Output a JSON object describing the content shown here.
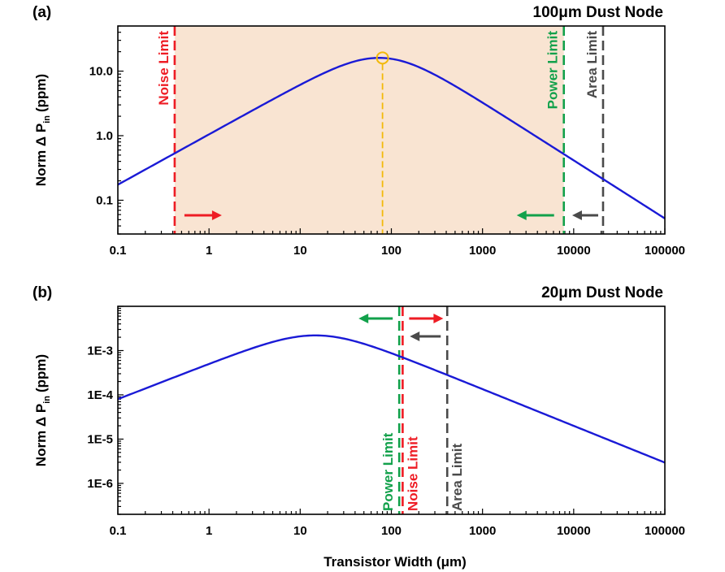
{
  "chart_data": [
    {
      "type": "line",
      "panel_label": "(a)",
      "title": "100μm Dust Node",
      "xlabel": "",
      "ylabel_main": "Norm Δ P",
      "ylabel_sub": "in",
      "ylabel_unit": "(ppm)",
      "xscale": "log",
      "yscale": "log",
      "xlim": [
        0.1,
        100000
      ],
      "ylim": [
        0.03,
        50
      ],
      "xticks": [
        {
          "value": 0.1,
          "label": "0.1"
        },
        {
          "value": 1,
          "label": "1"
        },
        {
          "value": 10,
          "label": "10"
        },
        {
          "value": 100,
          "label": "100"
        },
        {
          "value": 1000,
          "label": "1000"
        },
        {
          "value": 10000,
          "label": "10000"
        },
        {
          "value": 100000,
          "label": "100000"
        }
      ],
      "yticks": [
        {
          "value": 0.1,
          "label": "0.1"
        },
        {
          "value": 1,
          "label": "1.0"
        },
        {
          "value": 10,
          "label": "10.0"
        }
      ],
      "series": [
        {
          "name": "Norm ΔPin",
          "color": "#1a1ad6",
          "peak": {
            "x": 80,
            "y": 16
          },
          "slope_left": 0.78,
          "slope_right": 0.9
        }
      ],
      "optimum_marker": {
        "x": 80,
        "y": 16,
        "color": "#f2b90a"
      },
      "shaded_region": {
        "from": 0.42,
        "to": 7800,
        "color": "#f9e4d2"
      },
      "limits": [
        {
          "label": "Noise Limit",
          "x": 0.42,
          "color": "#ee1c24",
          "arrow": "right",
          "label_side": "left"
        },
        {
          "label": "Power Limit",
          "x": 7800,
          "color": "#12a14b",
          "arrow": "left",
          "label_side": "left"
        },
        {
          "label": "Area Limit",
          "x": 21000,
          "color": "#4a4a4a",
          "arrow": "left",
          "label_side": "left"
        }
      ]
    },
    {
      "type": "line",
      "panel_label": "(b)",
      "title": "20μm Dust Node",
      "xlabel": "Transistor Width (μm)",
      "ylabel_main": "Norm Δ P",
      "ylabel_sub": "in",
      "ylabel_unit": "(ppm)",
      "xscale": "log",
      "yscale": "log",
      "xlim": [
        0.1,
        100000
      ],
      "ylim": [
        2e-07,
        0.01
      ],
      "xticks": [
        {
          "value": 0.1,
          "label": "0.1"
        },
        {
          "value": 1,
          "label": "1"
        },
        {
          "value": 10,
          "label": "10"
        },
        {
          "value": 100,
          "label": "100"
        },
        {
          "value": 1000,
          "label": "1000"
        },
        {
          "value": 10000,
          "label": "10000"
        },
        {
          "value": 100000,
          "label": "100000"
        }
      ],
      "yticks": [
        {
          "value": 1e-06,
          "label": "1E-6"
        },
        {
          "value": 1e-05,
          "label": "1E-5"
        },
        {
          "value": 0.0001,
          "label": "1E-4"
        },
        {
          "value": 0.001,
          "label": "1E-3"
        }
      ],
      "series": [
        {
          "name": "Norm ΔPin",
          "color": "#1a1ad6",
          "peak": {
            "x": 15,
            "y": 0.0022
          },
          "slope_left": 0.8,
          "slope_right": 0.83
        }
      ],
      "limits": [
        {
          "label": "Power Limit",
          "x": 122,
          "color": "#12a14b",
          "arrow": "left",
          "label_side": "left"
        },
        {
          "label": "Noise Limit",
          "x": 133,
          "color": "#ee1c24",
          "arrow": "right",
          "label_side": "right"
        },
        {
          "label": "Area Limit",
          "x": 410,
          "color": "#4a4a4a",
          "arrow": "left",
          "label_side": "right"
        }
      ]
    }
  ]
}
